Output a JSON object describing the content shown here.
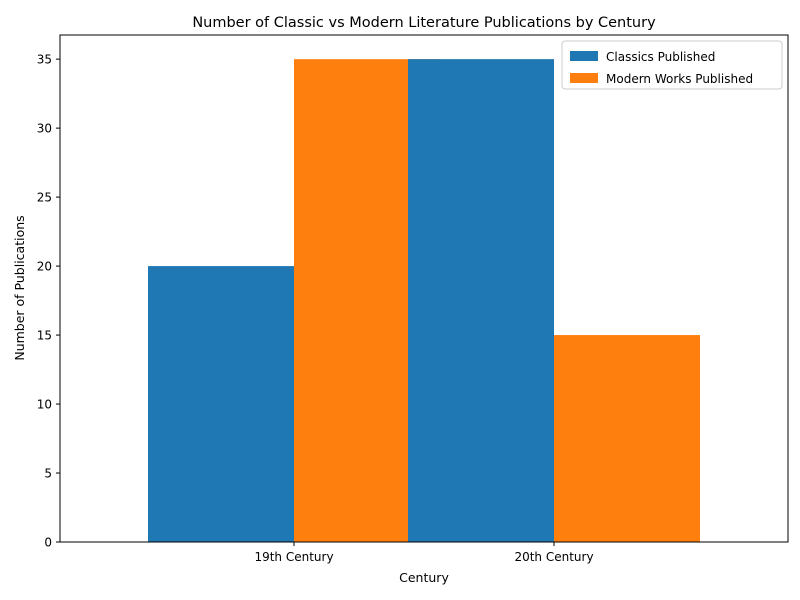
{
  "chart_data": {
    "type": "bar",
    "title": "Number of Classic vs Modern Literature Publications by Century",
    "xlabel": "Century",
    "ylabel": "Number of Publications",
    "categories": [
      "19th Century",
      "20th Century"
    ],
    "series": [
      {
        "name": "Classics Published",
        "values": [
          20,
          35
        ],
        "color": "#1f77b4"
      },
      {
        "name": "Modern Works Published",
        "values": [
          35,
          15
        ],
        "color": "#ff7f0e"
      }
    ],
    "ylim": [
      0,
      36.75
    ],
    "yticks": [
      0,
      5,
      10,
      15,
      20,
      25,
      30,
      35
    ],
    "grid": false,
    "legend_position": "top-right"
  }
}
